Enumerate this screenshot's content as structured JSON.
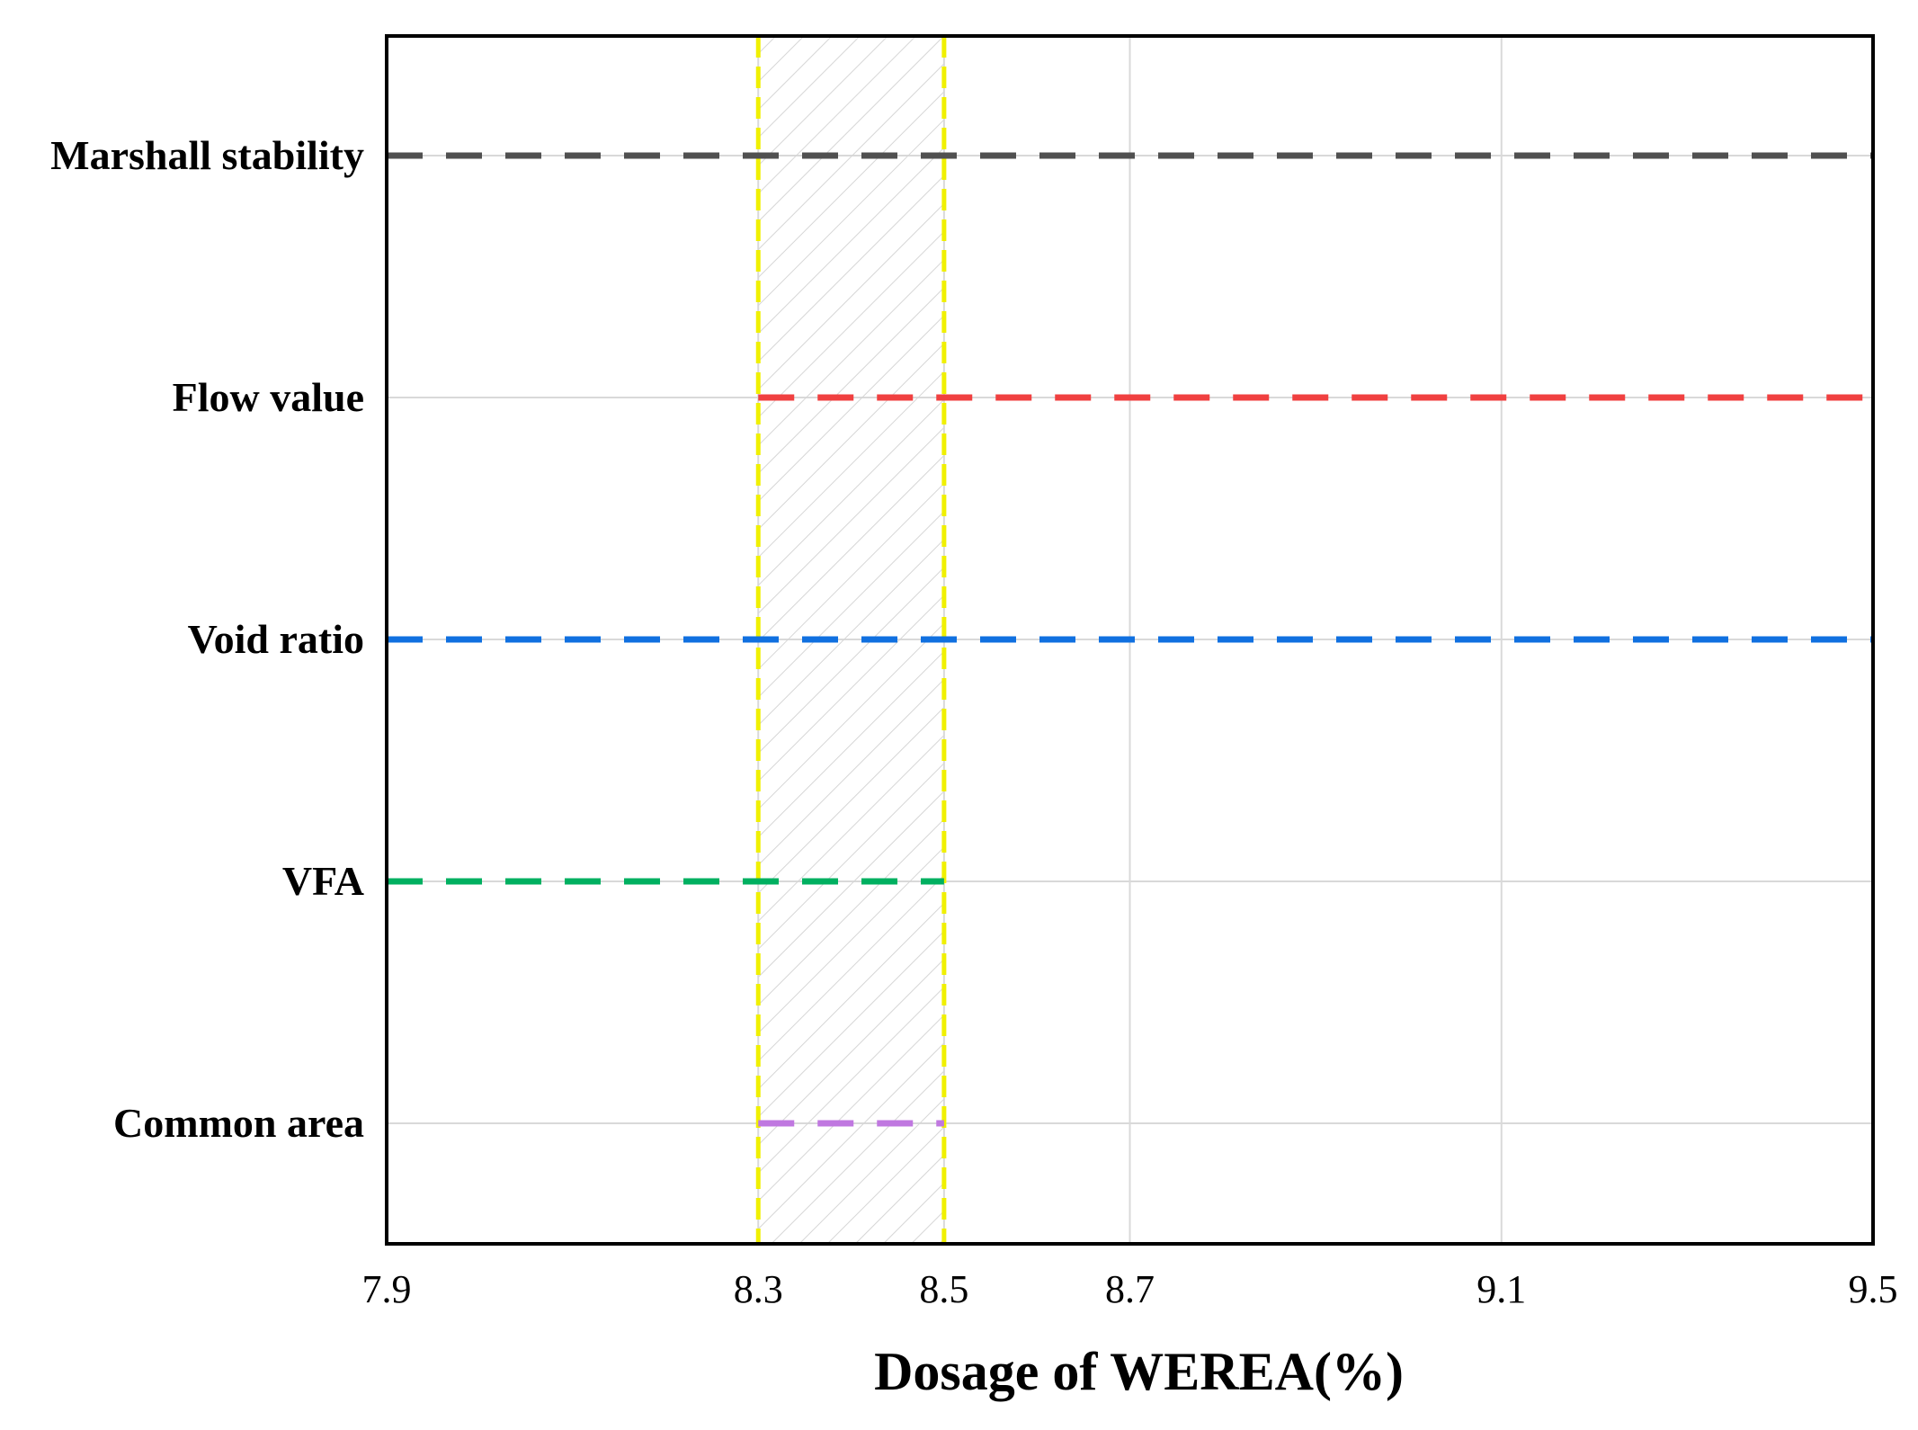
{
  "chart_data": {
    "type": "range",
    "title": "",
    "xlabel": "Dosage of WEREA(%)",
    "ylabel": "",
    "xlim": [
      7.9,
      9.5
    ],
    "x_ticks": [
      "7.9",
      "8.3",
      "8.5",
      "8.7",
      "9.1",
      "9.5"
    ],
    "x_tick_values": [
      7.9,
      8.3,
      8.5,
      8.7,
      9.1,
      9.5
    ],
    "grid": true,
    "categories": [
      "Marshall stability",
      "Flow value",
      "Void ratio",
      "VFA",
      "Common area"
    ],
    "series": [
      {
        "name": "Marshall stability",
        "start": 7.9,
        "end": 9.5,
        "color": "#505050"
      },
      {
        "name": "Flow value",
        "start": 8.3,
        "end": 9.5,
        "color": "#f04040"
      },
      {
        "name": "Void ratio",
        "start": 7.9,
        "end": 9.5,
        "color": "#1070e0"
      },
      {
        "name": "VFA",
        "start": 7.9,
        "end": 8.5,
        "color": "#00b060"
      },
      {
        "name": "Common area",
        "start": 8.3,
        "end": 8.5,
        "color": "#c078e0"
      }
    ],
    "highlight_band": {
      "start": 8.3,
      "end": 8.5,
      "edge_color": "#f0f000",
      "fill": "hatched"
    }
  }
}
